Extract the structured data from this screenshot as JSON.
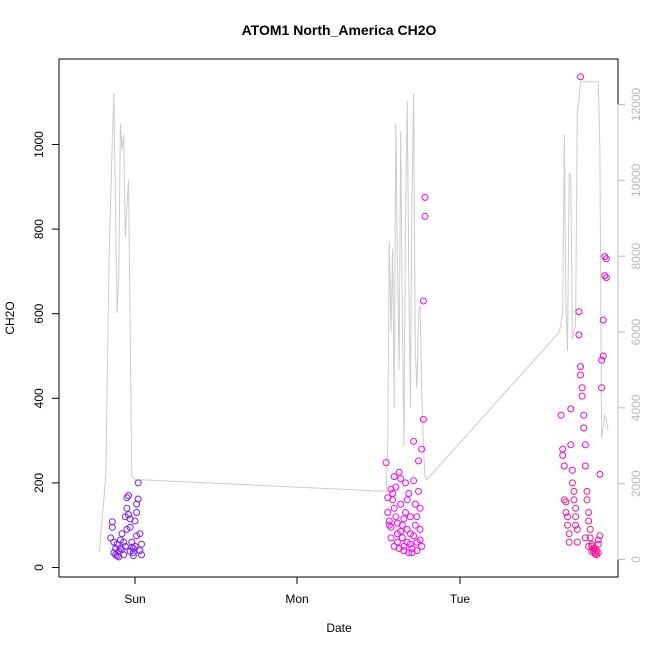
{
  "chart_data": {
    "type": "scatter",
    "title": "ATOM1 North_America CH2O",
    "xlabel": "Date",
    "ylabel": "CH2O",
    "x_ticks": [
      "Sun",
      "Mon",
      "Tue"
    ],
    "y_ticks": [
      "0",
      "200",
      "400",
      "600",
      "800",
      "1000"
    ],
    "y2_ticks": [
      "0",
      "2000",
      "4000",
      "6000",
      "8000",
      "10000",
      "12000"
    ],
    "ylim": [
      0,
      1160
    ],
    "y2lim": [
      0,
      12640
    ],
    "grid": false,
    "colors": {
      "early": "#7a1cff",
      "mid": "#ff00ff",
      "late": "#ff1493",
      "altitude_line": "#cccccc",
      "axis": "#000000",
      "right_axis": "#bbbbbb"
    },
    "series": [
      {
        "points": [
          [
            0.85,
            70
          ],
          [
            0.86,
            95
          ],
          [
            0.86,
            108
          ],
          [
            0.87,
            60
          ],
          [
            0.88,
            45
          ],
          [
            0.88,
            30
          ],
          [
            0.89,
            55
          ],
          [
            0.9,
            38
          ],
          [
            0.9,
            25
          ],
          [
            0.91,
            65
          ],
          [
            0.92,
            80
          ],
          [
            0.92,
            42
          ],
          [
            0.93,
            30
          ],
          [
            0.94,
            50
          ],
          [
            0.94,
            120
          ],
          [
            0.95,
            140
          ],
          [
            0.95,
            165
          ],
          [
            0.96,
            170
          ],
          [
            0.96,
            125
          ],
          [
            0.97,
            115
          ],
          [
            0.97,
            95
          ],
          [
            0.98,
            60
          ],
          [
            0.98,
            48
          ],
          [
            0.99,
            35
          ],
          [
            0.99,
            28
          ],
          [
            1.0,
            50
          ],
          [
            1.0,
            110
          ],
          [
            1.01,
            130
          ],
          [
            1.01,
            150
          ],
          [
            1.02,
            162
          ],
          [
            1.02,
            200
          ],
          [
            1.03,
            80
          ],
          [
            1.03,
            40
          ],
          [
            1.04,
            30
          ],
          [
            1.04,
            55
          ],
          [
            0.87,
            35
          ],
          [
            0.89,
            28
          ],
          [
            0.91,
            45
          ],
          [
            0.93,
            60
          ],
          [
            0.95,
            90
          ],
          [
            0.97,
            38
          ],
          [
            0.99,
            45
          ],
          [
            1.01,
            75
          ]
        ]
      },
      {
        "points": [
          [
            2.55,
            248
          ],
          [
            2.56,
            165
          ],
          [
            2.56,
            130
          ],
          [
            2.57,
            110
          ],
          [
            2.57,
            100
          ],
          [
            2.58,
            95
          ],
          [
            2.58,
            185
          ],
          [
            2.59,
            175
          ],
          [
            2.59,
            160
          ],
          [
            2.6,
            140
          ],
          [
            2.6,
            215
          ],
          [
            2.61,
            190
          ],
          [
            2.61,
            120
          ],
          [
            2.62,
            80
          ],
          [
            2.62,
            60
          ],
          [
            2.63,
            45
          ],
          [
            2.63,
            225
          ],
          [
            2.64,
            210
          ],
          [
            2.64,
            150
          ],
          [
            2.65,
            100
          ],
          [
            2.65,
            70
          ],
          [
            2.66,
            50
          ],
          [
            2.66,
            40
          ],
          [
            2.67,
            200
          ],
          [
            2.67,
            130
          ],
          [
            2.68,
            90
          ],
          [
            2.68,
            60
          ],
          [
            2.69,
            35
          ],
          [
            2.69,
            175
          ],
          [
            2.7,
            120
          ],
          [
            2.7,
            80
          ],
          [
            2.71,
            45
          ],
          [
            2.71,
            35
          ],
          [
            2.72,
            298
          ],
          [
            2.72,
            205
          ],
          [
            2.73,
            150
          ],
          [
            2.73,
            100
          ],
          [
            2.74,
            60
          ],
          [
            2.74,
            40
          ],
          [
            2.75,
            252
          ],
          [
            2.75,
            180
          ],
          [
            2.76,
            140
          ],
          [
            2.76,
            90
          ],
          [
            2.77,
            50
          ],
          [
            2.77,
            280
          ],
          [
            2.78,
            350
          ],
          [
            2.78,
            630
          ],
          [
            2.79,
            830
          ],
          [
            2.79,
            875
          ],
          [
            2.58,
            70
          ],
          [
            2.6,
            50
          ],
          [
            2.62,
            105
          ],
          [
            2.64,
            85
          ],
          [
            2.66,
            115
          ],
          [
            2.68,
            160
          ],
          [
            2.7,
            55
          ],
          [
            2.72,
            75
          ],
          [
            2.74,
            120
          ],
          [
            2.76,
            65
          ]
        ]
      },
      {
        "points": [
          [
            3.63,
            360
          ],
          [
            3.64,
            280
          ],
          [
            3.64,
            265
          ],
          [
            3.65,
            240
          ],
          [
            3.65,
            160
          ],
          [
            3.66,
            155
          ],
          [
            3.66,
            130
          ],
          [
            3.67,
            120
          ],
          [
            3.67,
            100
          ],
          [
            3.68,
            80
          ],
          [
            3.68,
            60
          ],
          [
            3.69,
            375
          ],
          [
            3.69,
            290
          ],
          [
            3.7,
            230
          ],
          [
            3.7,
            200
          ],
          [
            3.71,
            180
          ],
          [
            3.71,
            160
          ],
          [
            3.72,
            140
          ],
          [
            3.72,
            120
          ],
          [
            3.73,
            90
          ],
          [
            3.73,
            60
          ],
          [
            3.74,
            605
          ],
          [
            3.74,
            550
          ],
          [
            3.75,
            475
          ],
          [
            3.75,
            455
          ],
          [
            3.76,
            425
          ],
          [
            3.76,
            405
          ],
          [
            3.77,
            360
          ],
          [
            3.77,
            330
          ],
          [
            3.78,
            290
          ],
          [
            3.78,
            240
          ],
          [
            3.79,
            180
          ],
          [
            3.79,
            160
          ],
          [
            3.8,
            130
          ],
          [
            3.8,
            110
          ],
          [
            3.81,
            90
          ],
          [
            3.81,
            70
          ],
          [
            3.82,
            55
          ],
          [
            3.82,
            50
          ],
          [
            3.83,
            45
          ],
          [
            3.83,
            40
          ],
          [
            3.84,
            35
          ],
          [
            3.84,
            32
          ],
          [
            3.85,
            30
          ],
          [
            3.85,
            40
          ],
          [
            3.86,
            55
          ],
          [
            3.86,
            65
          ],
          [
            3.87,
            75
          ],
          [
            3.87,
            220
          ],
          [
            3.88,
            425
          ],
          [
            3.88,
            490
          ],
          [
            3.89,
            500
          ],
          [
            3.89,
            585
          ],
          [
            3.9,
            690
          ],
          [
            3.9,
            735
          ],
          [
            3.91,
            730
          ],
          [
            3.91,
            685
          ],
          [
            3.75,
            1160
          ],
          [
            3.72,
            100
          ],
          [
            3.78,
            70
          ],
          [
            3.8,
            50
          ],
          [
            3.82,
            38
          ],
          [
            3.84,
            45
          ],
          [
            3.86,
            35
          ]
        ]
      }
    ],
    "altitude_line": [
      [
        0.78,
        200
      ],
      [
        0.82,
        2200
      ],
      [
        0.84,
        8000
      ],
      [
        0.86,
        11000
      ],
      [
        0.87,
        12300
      ],
      [
        0.88,
        9000
      ],
      [
        0.89,
        6500
      ],
      [
        0.9,
        7500
      ],
      [
        0.91,
        11500
      ],
      [
        0.92,
        10800
      ],
      [
        0.93,
        11200
      ],
      [
        0.94,
        8500
      ],
      [
        0.96,
        10000
      ],
      [
        0.98,
        2200
      ],
      [
        1.0,
        2100
      ],
      [
        1.05,
        2100
      ],
      [
        2.55,
        1800
      ],
      [
        2.56,
        3000
      ],
      [
        2.57,
        8400
      ],
      [
        2.58,
        6000
      ],
      [
        2.59,
        8200
      ],
      [
        2.6,
        4000
      ],
      [
        2.61,
        11500
      ],
      [
        2.62,
        8000
      ],
      [
        2.63,
        5000
      ],
      [
        2.64,
        11300
      ],
      [
        2.65,
        6500
      ],
      [
        2.66,
        3000
      ],
      [
        2.67,
        9000
      ],
      [
        2.68,
        12100
      ],
      [
        2.69,
        7500
      ],
      [
        2.7,
        4000
      ],
      [
        2.71,
        9500
      ],
      [
        2.72,
        12300
      ],
      [
        2.73,
        5500
      ],
      [
        2.74,
        4500
      ],
      [
        2.75,
        6500
      ],
      [
        2.76,
        6700
      ],
      [
        2.77,
        4500
      ],
      [
        2.78,
        3000
      ],
      [
        2.79,
        2200
      ],
      [
        2.8,
        2100
      ],
      [
        3.62,
        6000
      ],
      [
        3.64,
        6500
      ],
      [
        3.65,
        11200
      ],
      [
        3.66,
        6800
      ],
      [
        3.67,
        5500
      ],
      [
        3.68,
        10200
      ],
      [
        3.69,
        10100
      ],
      [
        3.7,
        5800
      ],
      [
        3.72,
        6200
      ],
      [
        3.73,
        11800
      ],
      [
        3.74,
        12100
      ],
      [
        3.75,
        12600
      ],
      [
        3.8,
        12600
      ],
      [
        3.82,
        12600
      ],
      [
        3.84,
        12600
      ],
      [
        3.86,
        12600
      ],
      [
        3.87,
        10800
      ],
      [
        3.88,
        3200
      ],
      [
        3.9,
        3800
      ],
      [
        3.91,
        3700
      ],
      [
        3.92,
        3400
      ]
    ]
  }
}
